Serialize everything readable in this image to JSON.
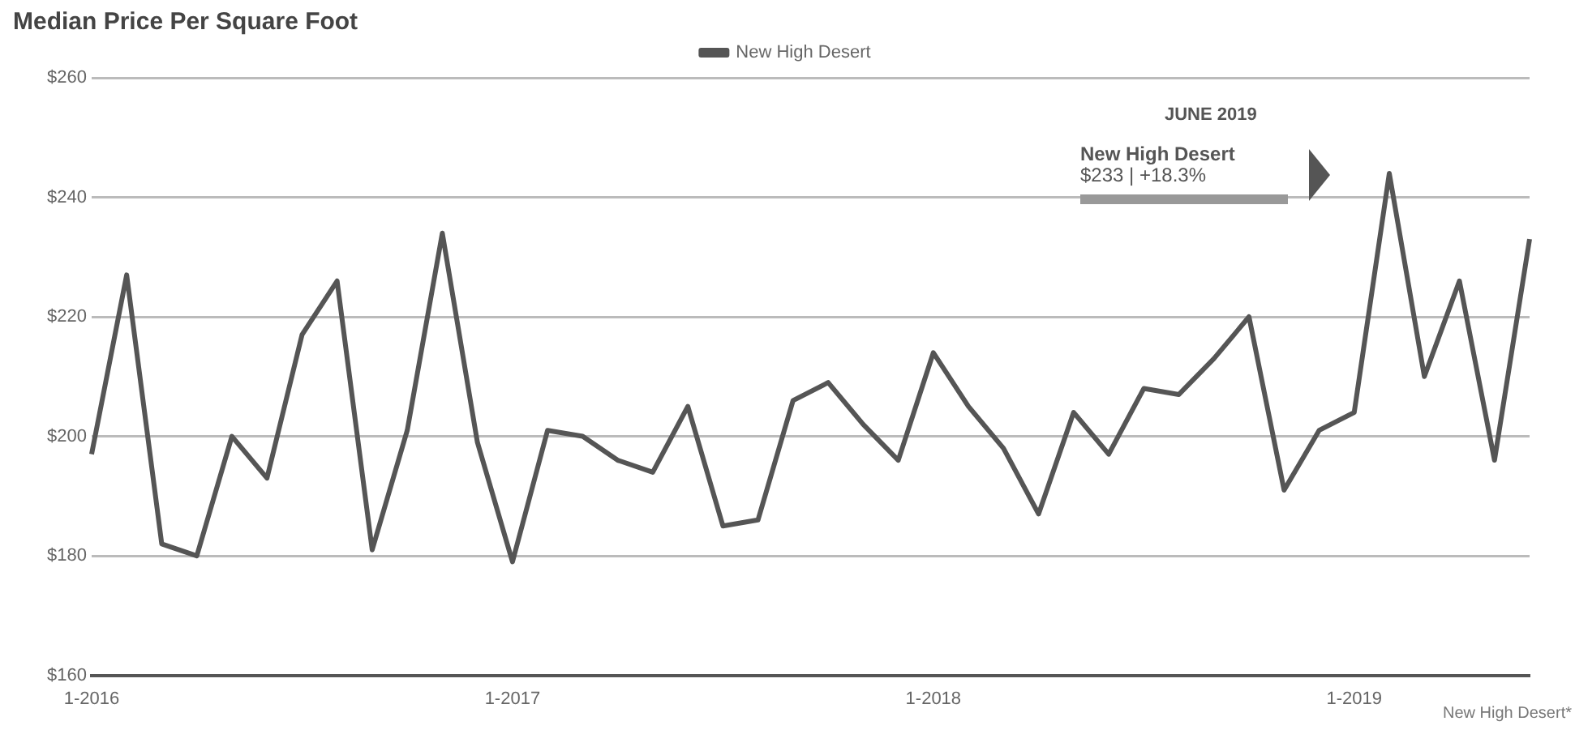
{
  "chart_data": {
    "type": "line",
    "title": "Median Price Per Square Foot",
    "x": [
      "2016-01",
      "2016-02",
      "2016-03",
      "2016-04",
      "2016-05",
      "2016-06",
      "2016-07",
      "2016-08",
      "2016-09",
      "2016-10",
      "2016-11",
      "2016-12",
      "2017-01",
      "2017-02",
      "2017-03",
      "2017-04",
      "2017-05",
      "2017-06",
      "2017-07",
      "2017-08",
      "2017-09",
      "2017-10",
      "2017-11",
      "2017-12",
      "2018-01",
      "2018-02",
      "2018-03",
      "2018-04",
      "2018-05",
      "2018-06",
      "2018-07",
      "2018-08",
      "2018-09",
      "2018-10",
      "2018-11",
      "2018-12",
      "2019-01",
      "2019-02",
      "2019-03",
      "2019-04",
      "2019-05",
      "2019-06"
    ],
    "series": [
      {
        "name": "New High Desert",
        "color": "#555555",
        "values": [
          197,
          227,
          182,
          180,
          200,
          193,
          217,
          226,
          181,
          201,
          234,
          199,
          179,
          201,
          200,
          196,
          194,
          205,
          185,
          186,
          206,
          209,
          202,
          196,
          214,
          205,
          198,
          187,
          204,
          197,
          208,
          207,
          213,
          220,
          191,
          201,
          204,
          244,
          210,
          226,
          196,
          233
        ]
      }
    ],
    "xlim": [
      "2016-01",
      "2019-06"
    ],
    "xticks": [
      {
        "value": "2016-01",
        "label": "1-2016"
      },
      {
        "value": "2017-01",
        "label": "1-2017"
      },
      {
        "value": "2018-01",
        "label": "1-2018"
      },
      {
        "value": "2019-01",
        "label": "1-2019"
      }
    ],
    "ylim": [
      160,
      260
    ],
    "yticks": [
      {
        "value": 160,
        "label": "$160"
      },
      {
        "value": 180,
        "label": "$180"
      },
      {
        "value": 200,
        "label": "$200"
      },
      {
        "value": 220,
        "label": "$220"
      },
      {
        "value": 240,
        "label": "$240"
      },
      {
        "value": 260,
        "label": "$260"
      }
    ],
    "annotations": [
      "JUNE 2019",
      "New High Desert",
      "$233 | +18.3%",
      "New High Desert*"
    ],
    "grid": "y",
    "legend": "top",
    "marker": "none",
    "line_style": "solid"
  }
}
